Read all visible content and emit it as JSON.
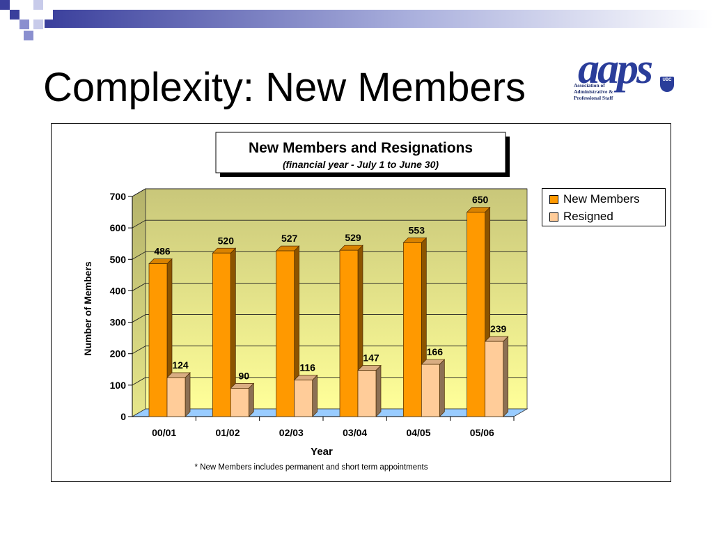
{
  "slide": {
    "title": "Complexity: New Members"
  },
  "logo": {
    "wordmark": "aaps",
    "org_lines": [
      "Association of",
      "Administrative &",
      "Professional Staff"
    ],
    "crest": "UBC"
  },
  "colors": {
    "new_members": "#ff9900",
    "resigned": "#ffcc99",
    "wall_top": "#c9c77a",
    "wall_bottom": "#ffff99",
    "floor": "#99ccff",
    "corner_blue": "#3a3f9c"
  },
  "chart_data": {
    "type": "bar",
    "title": "New Members and Resignations",
    "subtitle": "(financial year - July 1 to June 30)",
    "xlabel": "Year",
    "ylabel": "Number of Members",
    "categories": [
      "00/01",
      "01/02",
      "02/03",
      "03/04",
      "04/05",
      "05/06"
    ],
    "series": [
      {
        "name": "New Members",
        "values": [
          486,
          520,
          527,
          529,
          553,
          650
        ]
      },
      {
        "name": "Resigned",
        "values": [
          124,
          90,
          116,
          147,
          166,
          239
        ]
      }
    ],
    "ylim": [
      0,
      700
    ],
    "yticks": [
      "0",
      "100",
      "200",
      "300",
      "400",
      "500",
      "600",
      "700"
    ],
    "grid": true,
    "legend": "right",
    "three_d": true,
    "footnote": "* New Members includes permanent and short term appointments"
  }
}
